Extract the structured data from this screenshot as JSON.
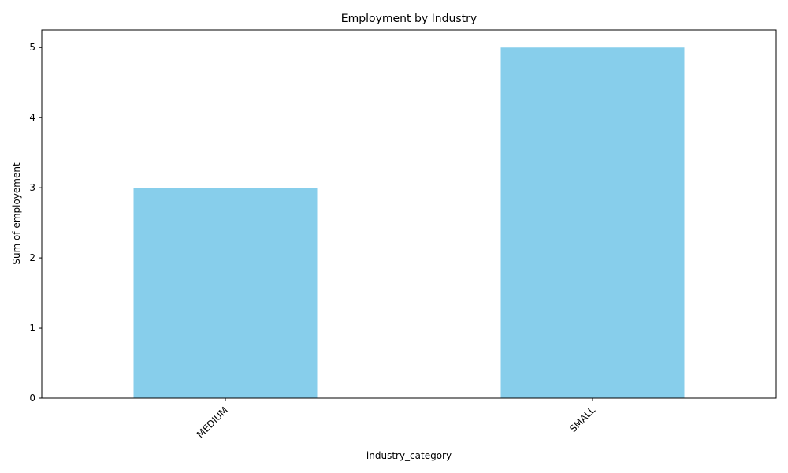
{
  "chart_data": {
    "type": "bar",
    "title": "Employment by Industry",
    "xlabel": "industry_category",
    "ylabel": "Sum of employement",
    "categories": [
      "MEDIUM",
      "SMALL"
    ],
    "values": [
      3,
      5
    ],
    "yticks": [
      "0",
      "1",
      "2",
      "3",
      "4",
      "5"
    ],
    "ylim": [
      0,
      5.25
    ],
    "grid": false,
    "legend": "none",
    "bar_color": "#87ceeb",
    "x_tick_rotation": 45
  }
}
